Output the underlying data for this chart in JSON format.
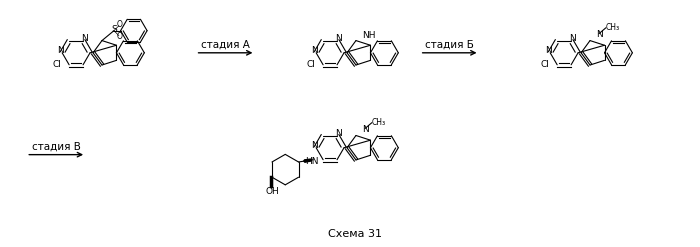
{
  "background_color": "#ffffff",
  "figure_width": 7.0,
  "figure_height": 2.47,
  "dpi": 100,
  "text_color": "#000000",
  "line_color": "#000000",
  "schema_text": "Схема 31",
  "stadia_a": "стадия А",
  "stadia_b": "стадия Б",
  "stadia_v": "стадия В"
}
